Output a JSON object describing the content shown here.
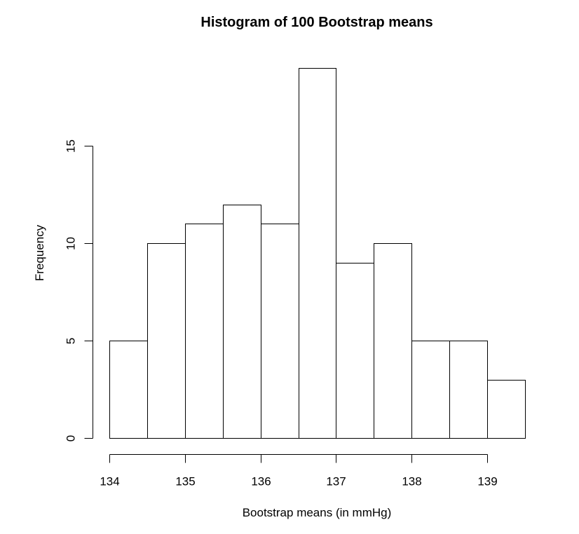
{
  "chart_data": {
    "type": "bar",
    "title": "Histogram of 100 Bootstrap means",
    "xlabel": "Bootstrap means (in mmHg)",
    "ylabel": "Frequency",
    "bin_edges": [
      134,
      134.5,
      135,
      135.5,
      136,
      136.5,
      137,
      137.5,
      138,
      138.5,
      139,
      139.5
    ],
    "values": [
      5,
      10,
      11,
      12,
      11,
      19,
      9,
      10,
      5,
      5,
      3
    ],
    "xlim": [
      134,
      139.5
    ],
    "ylim": [
      0,
      19
    ],
    "x_ticks": [
      134,
      135,
      136,
      137,
      138,
      139
    ],
    "y_ticks": [
      0,
      5,
      10,
      15
    ],
    "grid": false,
    "bar_fill": "#ffffff",
    "bar_stroke": "#000000"
  }
}
